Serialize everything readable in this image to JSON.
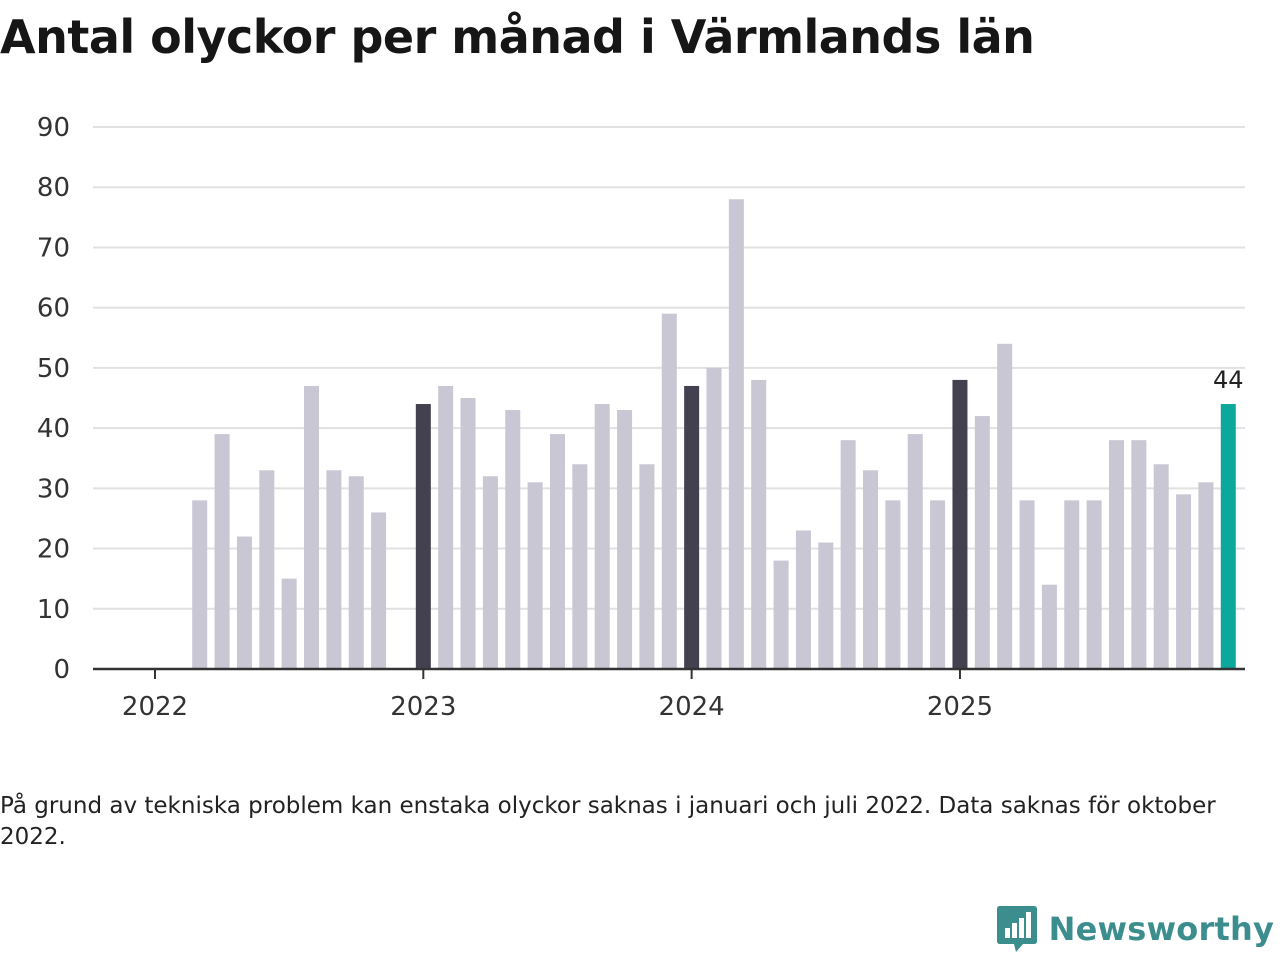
{
  "title": "Antal olyckor per månad i Värmlands län",
  "footnote": "På grund av tekniska problem kan enstaka olyckor saknas i januari och juli 2022. Data saknas för oktober 2022.",
  "brand": {
    "name": "Newsworthy",
    "icon": "bar-chart-bubble-icon",
    "color": "#3c8d8e"
  },
  "chart_data": {
    "type": "bar",
    "title": "Antal olyckor per månad i Värmlands län",
    "xlabel": "",
    "ylabel": "",
    "ylim": [
      0,
      90
    ],
    "yticks": [
      0,
      10,
      20,
      30,
      40,
      50,
      60,
      70,
      80,
      90
    ],
    "grid": true,
    "year_ticks": [
      {
        "label": "2022",
        "month_index": 0
      },
      {
        "label": "2023",
        "month_index": 12
      },
      {
        "label": "2024",
        "month_index": 24
      },
      {
        "label": "2025",
        "month_index": 36
      }
    ],
    "colors": {
      "default": "#c8c7d3",
      "highlight": "#434150",
      "latest": "#0da89c",
      "grid": "#e1e1e1",
      "axis": "#333333"
    },
    "series": [
      {
        "name": "Antal olyckor",
        "values": [
          null,
          null,
          28,
          39,
          22,
          33,
          15,
          47,
          33,
          32,
          26,
          null,
          44,
          47,
          45,
          32,
          43,
          31,
          39,
          34,
          44,
          43,
          34,
          59,
          47,
          50,
          78,
          48,
          18,
          23,
          21,
          38,
          33,
          28,
          39,
          28,
          48,
          42,
          54,
          28,
          14,
          28,
          28,
          38,
          38,
          34,
          29,
          31,
          44
        ]
      }
    ],
    "highlighted_months": [
      12,
      24,
      36
    ],
    "latest_index": 48,
    "annotations": [
      {
        "month_index": 48,
        "label": "44"
      }
    ]
  }
}
